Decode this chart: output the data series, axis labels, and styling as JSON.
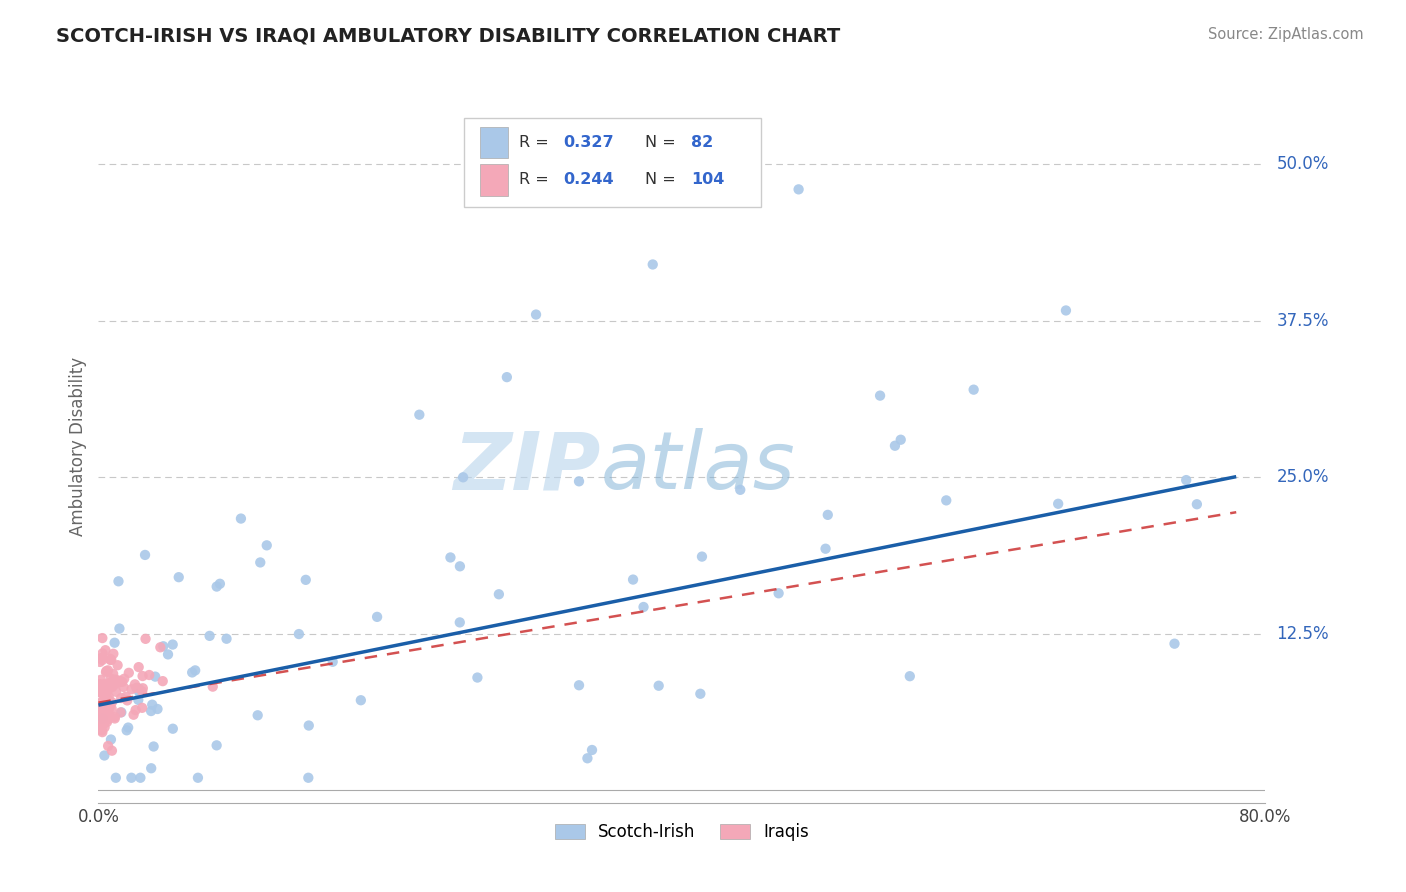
{
  "title": "SCOTCH-IRISH VS IRAQI AMBULATORY DISABILITY CORRELATION CHART",
  "source_text": "Source: ZipAtlas.com",
  "ylabel": "Ambulatory Disability",
  "xlim": [
    0.0,
    0.8
  ],
  "ylim": [
    -0.01,
    0.56
  ],
  "ytick_labels": [
    "12.5%",
    "25.0%",
    "37.5%",
    "50.0%"
  ],
  "ytick_vals": [
    0.125,
    0.25,
    0.375,
    0.5
  ],
  "scotch_irish_color": "#aac8e8",
  "iraqi_color": "#f4a8b8",
  "scotch_irish_line_color": "#1a5ea8",
  "iraqi_line_color": "#cc3333",
  "grid_color": "#c8c8c8",
  "background_color": "#ffffff",
  "r_scotch": 0.327,
  "n_scotch": 82,
  "r_iraqi": 0.244,
  "n_iraqi": 104
}
